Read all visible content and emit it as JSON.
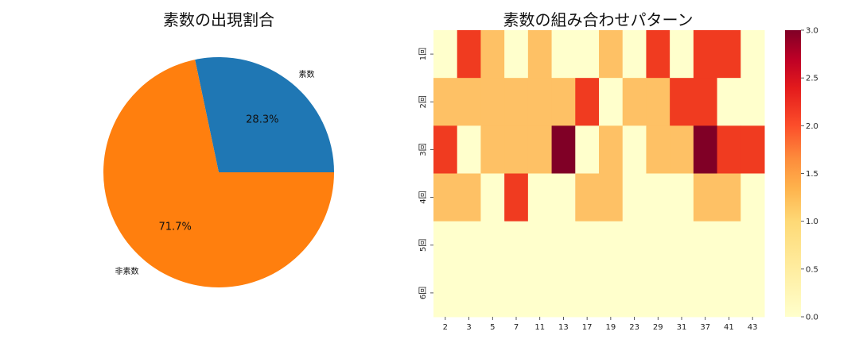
{
  "chart_data": [
    {
      "type": "pie",
      "title": "素数の出現割合",
      "labels": [
        "素数",
        "非素数"
      ],
      "values": [
        28.3,
        71.7
      ],
      "value_labels": [
        "28.3%",
        "71.7%"
      ],
      "colors": [
        "#1f77b4",
        "#ff7f0e"
      ]
    },
    {
      "type": "heatmap",
      "title": "素数の組み合わせパターン",
      "x_categories": [
        "2",
        "3",
        "5",
        "7",
        "11",
        "13",
        "17",
        "19",
        "23",
        "29",
        "31",
        "37",
        "41",
        "43"
      ],
      "y_categories": [
        "1回",
        "2回",
        "3回",
        "4回",
        "5回",
        "6回"
      ],
      "values": [
        [
          0,
          2,
          1,
          0,
          1,
          0,
          0,
          1,
          0,
          2,
          0,
          2,
          2,
          0
        ],
        [
          1,
          1,
          1,
          1,
          1,
          1,
          2,
          0,
          1,
          1,
          2,
          2,
          0,
          0
        ],
        [
          2,
          0,
          1,
          1,
          1,
          3,
          0,
          1,
          0,
          1,
          1,
          3,
          2,
          2
        ],
        [
          1,
          1,
          0,
          2,
          0,
          0,
          1,
          1,
          0,
          0,
          0,
          1,
          1,
          0
        ],
        [
          0,
          0,
          0,
          0,
          0,
          0,
          0,
          0,
          0,
          0,
          0,
          0,
          0,
          0
        ],
        [
          0,
          0,
          0,
          0,
          0,
          0,
          0,
          0,
          0,
          0,
          0,
          0,
          0,
          0
        ]
      ],
      "zlim": [
        0,
        3
      ],
      "colormap": "YlOrRd",
      "colorbar_ticks": [
        "0.0",
        "0.5",
        "1.0",
        "1.5",
        "2.0",
        "2.5",
        "3.0"
      ],
      "colorbar_tick_values": [
        0,
        0.5,
        1,
        1.5,
        2,
        2.5,
        3
      ]
    }
  ]
}
